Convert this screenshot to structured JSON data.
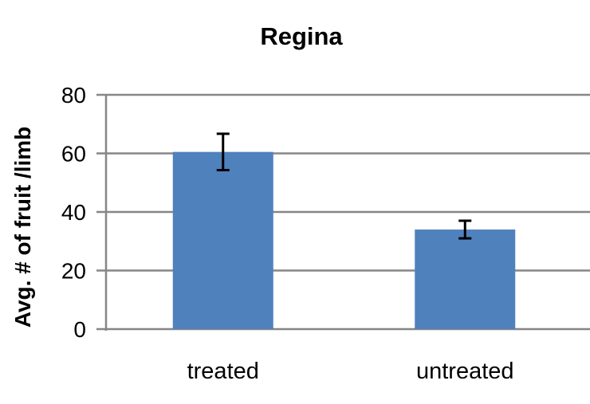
{
  "chart_data": {
    "type": "bar",
    "title": "Regina",
    "xlabel": "",
    "ylabel": "Avg. # of fruit /limb",
    "categories": [
      "treated",
      "untreated"
    ],
    "values": [
      60.5,
      34
    ],
    "error": [
      6.2,
      3
    ],
    "ylim": [
      0,
      80
    ],
    "yticks": [
      0,
      20,
      40,
      60,
      80
    ],
    "grid": true,
    "legend": "none",
    "colors": {
      "bar": "#4f81bd",
      "grid": "#868686",
      "error": "#000000"
    }
  }
}
